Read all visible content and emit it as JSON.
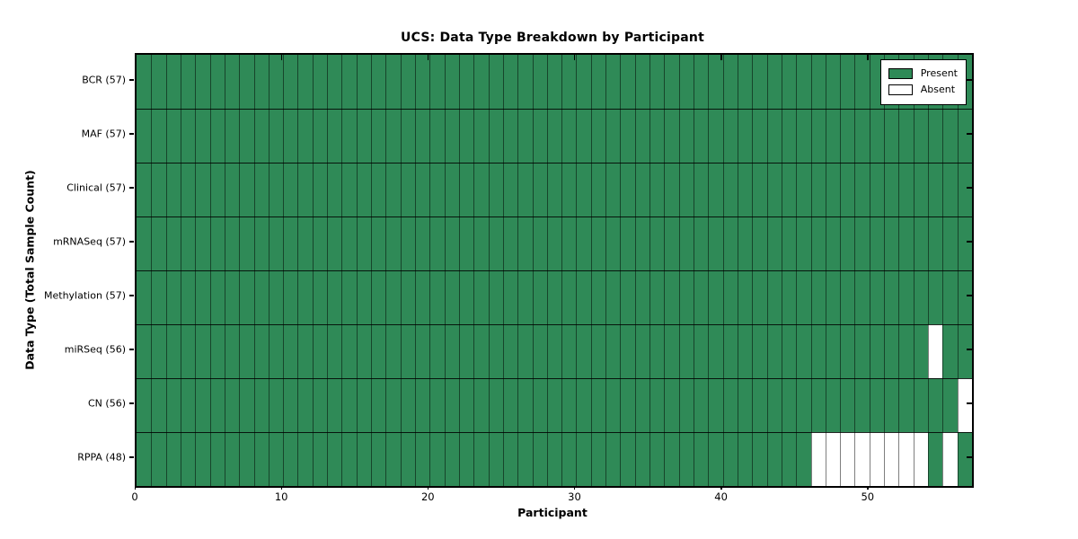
{
  "chart_data": {
    "type": "heatmap",
    "title": "UCS: Data Type Breakdown by Participant",
    "xlabel": "Participant",
    "ylabel": "Data Type (Total Sample Count)",
    "n_participants": 57,
    "x_axis_range": [
      0,
      57
    ],
    "x_ticks": [
      0,
      10,
      20,
      30,
      40,
      50
    ],
    "grid": "cell-borders",
    "rows": [
      {
        "label": "BCR (57)",
        "data_type": "BCR",
        "count": 57,
        "absent_participants": []
      },
      {
        "label": "MAF (57)",
        "data_type": "MAF",
        "count": 57,
        "absent_participants": []
      },
      {
        "label": "Clinical (57)",
        "data_type": "Clinical",
        "count": 57,
        "absent_participants": []
      },
      {
        "label": "mRNASeq (57)",
        "data_type": "mRNASeq",
        "count": 57,
        "absent_participants": []
      },
      {
        "label": "Methylation (57)",
        "data_type": "Methylation",
        "count": 57,
        "absent_participants": []
      },
      {
        "label": "miRSeq (56)",
        "data_type": "miRSeq",
        "count": 56,
        "absent_participants": [
          54
        ]
      },
      {
        "label": "CN (56)",
        "data_type": "CN",
        "count": 56,
        "absent_participants": [
          56
        ]
      },
      {
        "label": "RPPA (48)",
        "data_type": "RPPA",
        "count": 48,
        "absent_participants": [
          46,
          47,
          48,
          49,
          50,
          51,
          52,
          53,
          55
        ]
      }
    ],
    "legend": {
      "position": "top-right",
      "entries": [
        {
          "label": "Present",
          "color": "#2f8a57"
        },
        {
          "label": "Absent",
          "color": "#ffffff"
        }
      ]
    },
    "colors": {
      "present": "#2f8a57",
      "absent": "#ffffff",
      "column_line": "rgba(0,0,0,0.5)",
      "row_line": "rgba(0,0,0,0.85)",
      "frame": "#000000"
    }
  }
}
